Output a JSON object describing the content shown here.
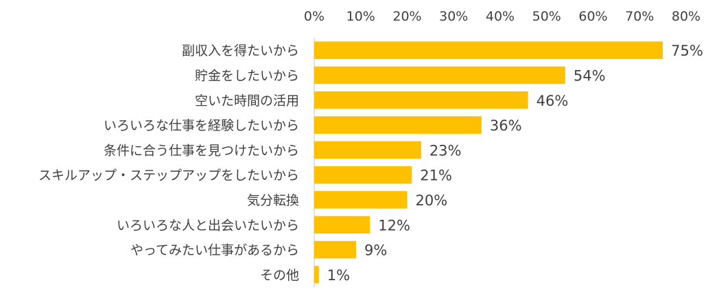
{
  "chart_data": {
    "type": "bar",
    "orientation": "horizontal",
    "title": "",
    "xlabel": "",
    "ylabel": "",
    "xlim": [
      0,
      80
    ],
    "tick_values": [
      0,
      10,
      20,
      30,
      40,
      50,
      60,
      70,
      80
    ],
    "tick_labels": [
      "0%",
      "10%",
      "20%",
      "30%",
      "40%",
      "50%",
      "60%",
      "70%",
      "80%"
    ],
    "tick_position": "top",
    "grid": false,
    "legend": "none",
    "bar_color": "#FFC000",
    "categories": [
      "副収入を得たいから",
      "貯金をしたいから",
      "空いた時間の活用",
      "いろいろな仕事を経験したいから",
      "条件に合う仕事を見つけたいから",
      "スキルアップ・ステップアップをしたいから",
      "気分転換",
      "いろいろな人と出会いたいから",
      "やってみたい仕事があるから",
      "その他"
    ],
    "values": [
      75,
      54,
      46,
      36,
      23,
      21,
      20,
      12,
      9,
      1
    ],
    "value_labels": [
      "75%",
      "54%",
      "46%",
      "36%",
      "23%",
      "21%",
      "20%",
      "12%",
      "9%",
      "1%"
    ]
  }
}
